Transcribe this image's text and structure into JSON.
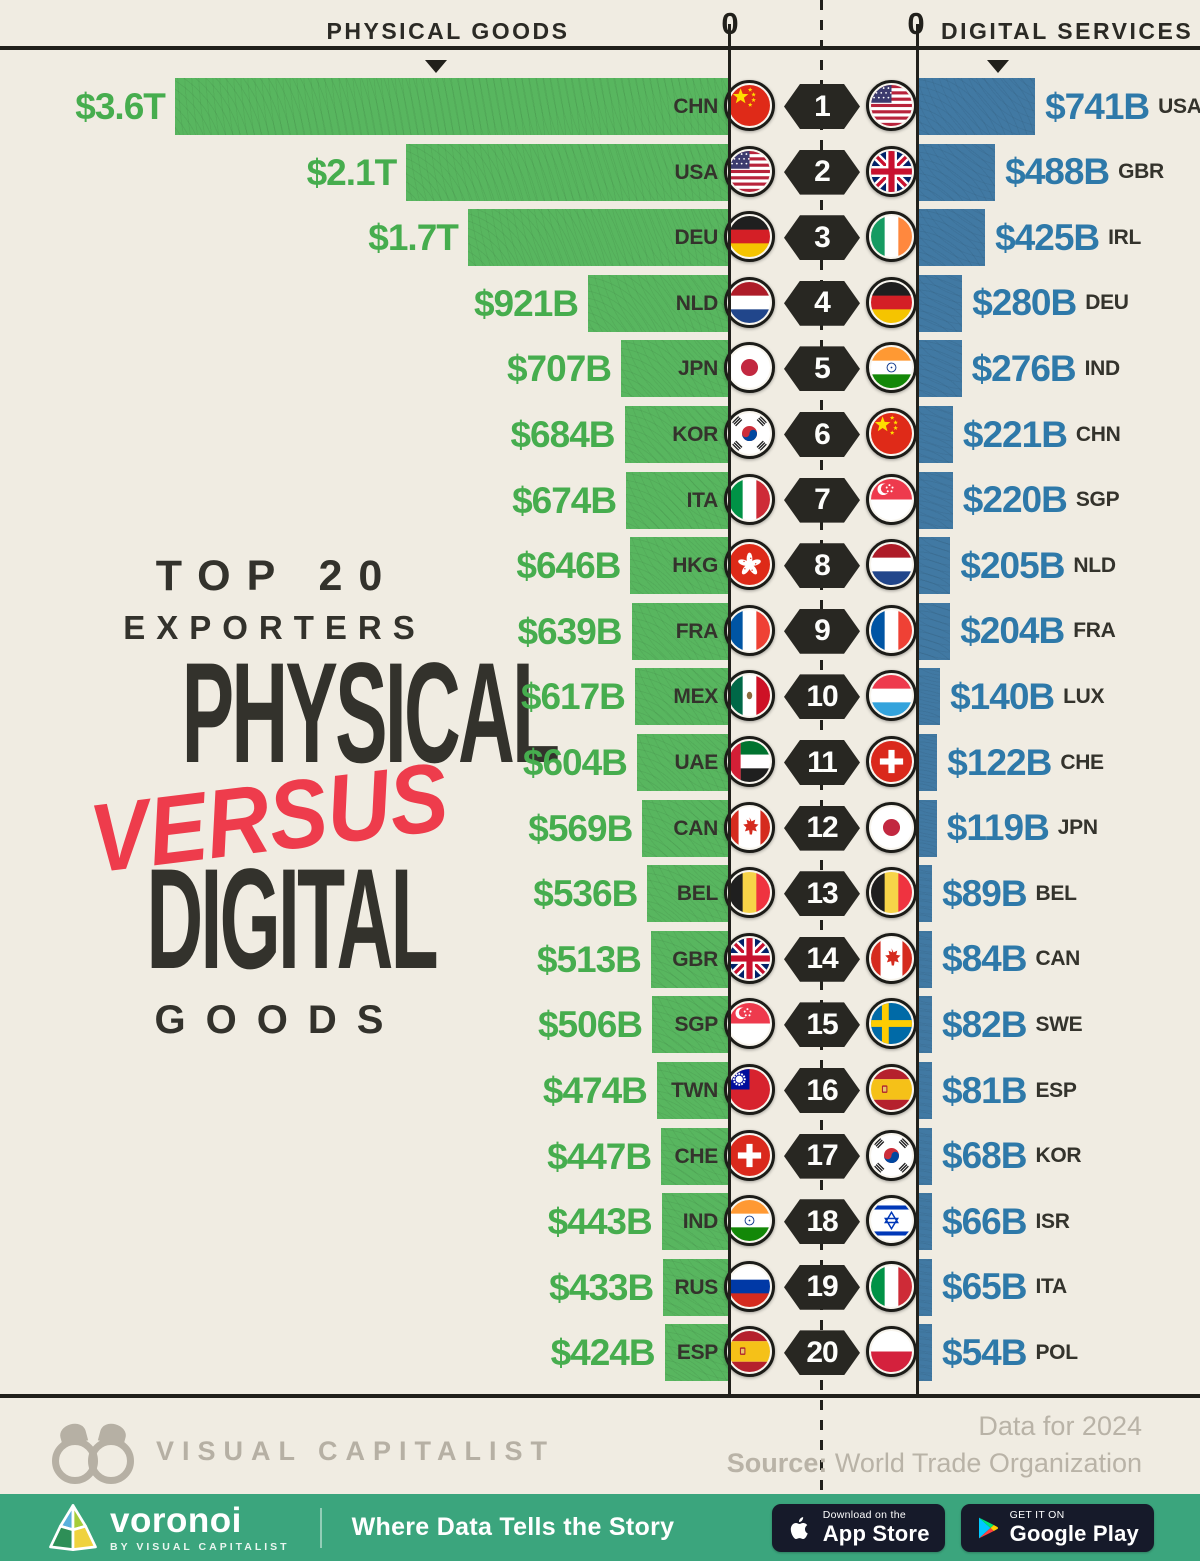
{
  "header": {
    "physical_label": "PHYSICAL GOODS",
    "digital_label": "DIGITAL SERVICES",
    "zero_left": "0",
    "zero_right": "0"
  },
  "title": {
    "kicker1": "TOP 20",
    "kicker2": "EXPORTERS",
    "big1": "PHYSICAL",
    "versus": "VERSUS",
    "big2": "DIGITAL",
    "sub": "GOODS"
  },
  "colors": {
    "background": "#f0ece2",
    "physical_green": "#58b65f",
    "physical_text_green": "#46ad4e",
    "digital_blue": "#4179a3",
    "digital_text_blue": "#2e79a9",
    "accent_red": "#ee3c4c",
    "ink": "#21201b",
    "band_teal": "#3ba57d",
    "badge_navy": "#161a2a",
    "muted_gray": "#b9b3a7"
  },
  "chart_data": {
    "type": "bar",
    "orientation": "bidirectional-horizontal",
    "title": "Top 20 Exporters: Physical versus Digital Goods",
    "unit": "USD",
    "year_note": "Data for 2024",
    "source": "World Trade Organization",
    "left_series": {
      "name": "Physical Goods",
      "color": "#58b65f"
    },
    "right_series": {
      "name": "Digital Services",
      "color": "#4179a3"
    },
    "rows": [
      {
        "rank": 1,
        "physical": {
          "code": "CHN",
          "label": "$3.6T",
          "value_billion_usd": 3600
        },
        "digital": {
          "code": "USA",
          "label": "$741B",
          "value_billion_usd": 741
        }
      },
      {
        "rank": 2,
        "physical": {
          "code": "USA",
          "label": "$2.1T",
          "value_billion_usd": 2100
        },
        "digital": {
          "code": "GBR",
          "label": "$488B",
          "value_billion_usd": 488
        }
      },
      {
        "rank": 3,
        "physical": {
          "code": "DEU",
          "label": "$1.7T",
          "value_billion_usd": 1700
        },
        "digital": {
          "code": "IRL",
          "label": "$425B",
          "value_billion_usd": 425
        }
      },
      {
        "rank": 4,
        "physical": {
          "code": "NLD",
          "label": "$921B",
          "value_billion_usd": 921
        },
        "digital": {
          "code": "DEU",
          "label": "$280B",
          "value_billion_usd": 280
        }
      },
      {
        "rank": 5,
        "physical": {
          "code": "JPN",
          "label": "$707B",
          "value_billion_usd": 707
        },
        "digital": {
          "code": "IND",
          "label": "$276B",
          "value_billion_usd": 276
        }
      },
      {
        "rank": 6,
        "physical": {
          "code": "KOR",
          "label": "$684B",
          "value_billion_usd": 684
        },
        "digital": {
          "code": "CHN",
          "label": "$221B",
          "value_billion_usd": 221
        }
      },
      {
        "rank": 7,
        "physical": {
          "code": "ITA",
          "label": "$674B",
          "value_billion_usd": 674
        },
        "digital": {
          "code": "SGP",
          "label": "$220B",
          "value_billion_usd": 220
        }
      },
      {
        "rank": 8,
        "physical": {
          "code": "HKG",
          "label": "$646B",
          "value_billion_usd": 646
        },
        "digital": {
          "code": "NLD",
          "label": "$205B",
          "value_billion_usd": 205
        }
      },
      {
        "rank": 9,
        "physical": {
          "code": "FRA",
          "label": "$639B",
          "value_billion_usd": 639
        },
        "digital": {
          "code": "FRA",
          "label": "$204B",
          "value_billion_usd": 204
        }
      },
      {
        "rank": 10,
        "physical": {
          "code": "MEX",
          "label": "$617B",
          "value_billion_usd": 617
        },
        "digital": {
          "code": "LUX",
          "label": "$140B",
          "value_billion_usd": 140
        }
      },
      {
        "rank": 11,
        "physical": {
          "code": "UAE",
          "label": "$604B",
          "value_billion_usd": 604
        },
        "digital": {
          "code": "CHE",
          "label": "$122B",
          "value_billion_usd": 122
        }
      },
      {
        "rank": 12,
        "physical": {
          "code": "CAN",
          "label": "$569B",
          "value_billion_usd": 569
        },
        "digital": {
          "code": "JPN",
          "label": "$119B",
          "value_billion_usd": 119
        }
      },
      {
        "rank": 13,
        "physical": {
          "code": "BEL",
          "label": "$536B",
          "value_billion_usd": 536
        },
        "digital": {
          "code": "BEL",
          "label": "$89B",
          "value_billion_usd": 89
        }
      },
      {
        "rank": 14,
        "physical": {
          "code": "GBR",
          "label": "$513B",
          "value_billion_usd": 513
        },
        "digital": {
          "code": "CAN",
          "label": "$84B",
          "value_billion_usd": 84
        }
      },
      {
        "rank": 15,
        "physical": {
          "code": "SGP",
          "label": "$506B",
          "value_billion_usd": 506
        },
        "digital": {
          "code": "SWE",
          "label": "$82B",
          "value_billion_usd": 82
        }
      },
      {
        "rank": 16,
        "physical": {
          "code": "TWN",
          "label": "$474B",
          "value_billion_usd": 474
        },
        "digital": {
          "code": "ESP",
          "label": "$81B",
          "value_billion_usd": 81
        }
      },
      {
        "rank": 17,
        "physical": {
          "code": "CHE",
          "label": "$447B",
          "value_billion_usd": 447
        },
        "digital": {
          "code": "KOR",
          "label": "$68B",
          "value_billion_usd": 68
        }
      },
      {
        "rank": 18,
        "physical": {
          "code": "IND",
          "label": "$443B",
          "value_billion_usd": 443
        },
        "digital": {
          "code": "ISR",
          "label": "$66B",
          "value_billion_usd": 66
        }
      },
      {
        "rank": 19,
        "physical": {
          "code": "RUS",
          "label": "$433B",
          "value_billion_usd": 433
        },
        "digital": {
          "code": "ITA",
          "label": "$65B",
          "value_billion_usd": 65
        }
      },
      {
        "rank": 20,
        "physical": {
          "code": "ESP",
          "label": "$424B",
          "value_billion_usd": 424
        },
        "digital": {
          "code": "POL",
          "label": "$54B",
          "value_billion_usd": 54
        }
      }
    ]
  },
  "footer": {
    "vc_wordmark": "VISUAL CAPITALIST",
    "data_note": "Data for 2024",
    "source_label": "Source:",
    "source_value": "World Trade Organization",
    "voronoi": {
      "brand": "voronoi",
      "byline": "BY VISUAL CAPITALIST",
      "tagline": "Where Data Tells the Story"
    },
    "app_store": {
      "kicker": "Download on the",
      "name": "App Store"
    },
    "google_play": {
      "kicker": "GET IT ON",
      "name": "Google Play"
    }
  }
}
